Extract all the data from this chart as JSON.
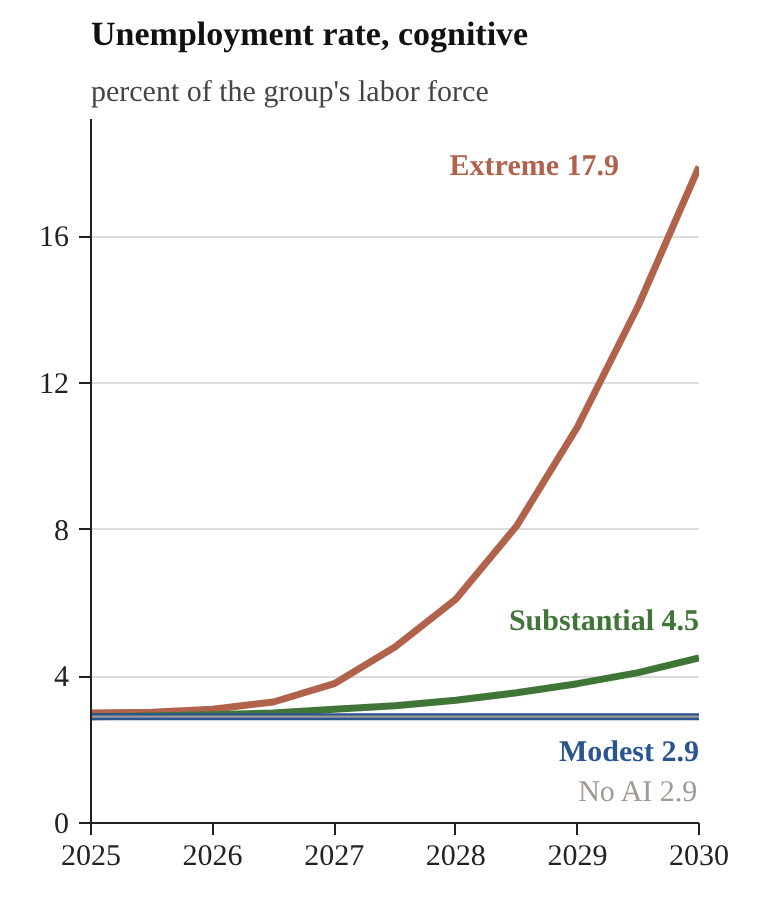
{
  "chart_data": {
    "type": "line",
    "title": "Unemployment rate, cognitive",
    "subtitle": "percent of the group's labor force",
    "x": [
      2025,
      2025.5,
      2026,
      2026.5,
      2027,
      2027.5,
      2028,
      2028.5,
      2029,
      2029.5,
      2030
    ],
    "xlim": [
      2025,
      2030
    ],
    "xticks": [
      2025,
      2026,
      2027,
      2028,
      2029,
      2030
    ],
    "ylim": [
      0,
      19.2
    ],
    "yticks": [
      0,
      4,
      8,
      12,
      16
    ],
    "grid": "y",
    "marker": "none",
    "line_style": "solid",
    "series": [
      {
        "name": "Extreme",
        "color": "#b0634a",
        "values": [
          3.0,
          3.02,
          3.1,
          3.3,
          3.8,
          4.8,
          6.1,
          8.1,
          10.8,
          14.1,
          17.9
        ],
        "value_labels": [
          null,
          null,
          null,
          null,
          null,
          null,
          null,
          null,
          null,
          null,
          "17.9"
        ]
      },
      {
        "name": "Substantial",
        "color": "#3f7537",
        "values": [
          2.9,
          2.92,
          2.95,
          3.0,
          3.1,
          3.2,
          3.35,
          3.55,
          3.8,
          4.1,
          4.5
        ],
        "value_labels": [
          null,
          null,
          null,
          null,
          null,
          null,
          null,
          null,
          null,
          null,
          "4.5"
        ]
      },
      {
        "name": "Modest",
        "color": "#2b5591",
        "values": [
          2.9,
          2.9,
          2.9,
          2.9,
          2.9,
          2.9,
          2.9,
          2.9,
          2.9,
          2.9,
          2.9
        ],
        "value_labels": [
          null,
          null,
          null,
          null,
          null,
          null,
          null,
          null,
          null,
          null,
          "2.9"
        ]
      },
      {
        "name": "No AI",
        "color": "#a09a92",
        "values": [
          2.9,
          2.9,
          2.9,
          2.9,
          2.9,
          2.9,
          2.9,
          2.9,
          2.9,
          2.9,
          2.9
        ],
        "value_labels": [
          null,
          null,
          null,
          null,
          null,
          null,
          null,
          null,
          null,
          null,
          "2.9"
        ]
      }
    ]
  }
}
